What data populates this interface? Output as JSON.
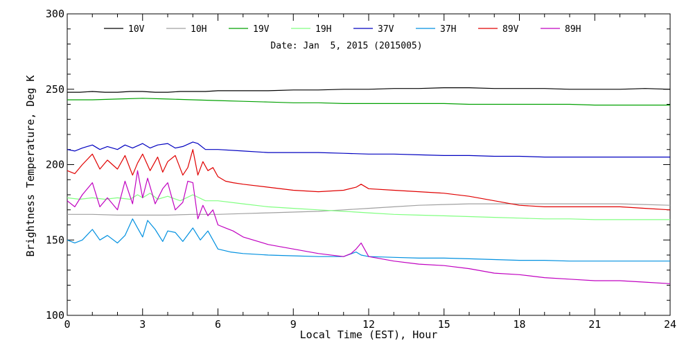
{
  "chart_data": {
    "type": "line",
    "title": "",
    "subtitle": "Date: Jan  5, 2015 (2015005)",
    "xlabel": "Local Time (EST), Hour",
    "ylabel": "Brightness Temperature, Deg K",
    "xlim": [
      0,
      24
    ],
    "ylim": [
      100,
      300
    ],
    "x_ticks": [
      0,
      3,
      6,
      9,
      12,
      15,
      18,
      21,
      24
    ],
    "y_ticks": [
      100,
      150,
      200,
      250,
      300
    ],
    "x_tick_labels": [
      "0",
      "3",
      "6",
      "9",
      "12",
      "15",
      "18",
      "21",
      "24"
    ],
    "y_tick_labels": [
      "100",
      "150",
      "200",
      "250",
      "300"
    ],
    "legend_position": "top",
    "grid": false,
    "series": [
      {
        "name": "10V",
        "color": "#000000",
        "x": [
          0,
          0.5,
          1,
          1.5,
          2,
          2.5,
          3,
          3.5,
          4,
          4.5,
          5,
          5.5,
          6,
          7,
          8,
          9,
          10,
          11,
          12,
          13,
          14,
          15,
          16,
          17,
          18,
          19,
          20,
          21,
          22,
          23,
          24
        ],
        "y": [
          248,
          248,
          248.5,
          248,
          248,
          248.5,
          248.5,
          248,
          248,
          248.5,
          248.5,
          248.5,
          249,
          249,
          249,
          249.5,
          249.5,
          250,
          250,
          250.5,
          250.5,
          251,
          251,
          250.5,
          250.5,
          250.5,
          250,
          250,
          250,
          250.5,
          250
        ]
      },
      {
        "name": "10H",
        "color": "#a0a0a0",
        "x": [
          0,
          1,
          2,
          3,
          4,
          5,
          6,
          7,
          8,
          9,
          10,
          11,
          12,
          13,
          14,
          15,
          16,
          17,
          18,
          19,
          20,
          21,
          22,
          23,
          24
        ],
        "y": [
          167,
          167,
          166.5,
          166.5,
          166.5,
          167,
          167,
          167.5,
          168,
          168.5,
          169,
          170,
          171,
          172,
          173,
          173.5,
          174,
          174,
          174,
          174,
          174,
          174,
          174,
          173.5,
          173
        ]
      },
      {
        "name": "19V",
        "color": "#00a000",
        "x": [
          0,
          1,
          2,
          3,
          4,
          5,
          6,
          7,
          8,
          9,
          10,
          11,
          12,
          13,
          14,
          15,
          16,
          17,
          18,
          19,
          20,
          21,
          22,
          23,
          24
        ],
        "y": [
          243,
          243,
          243.5,
          244,
          243.5,
          243,
          242.5,
          242,
          241.5,
          241,
          241,
          240.5,
          240.5,
          240.5,
          240.5,
          240.5,
          240,
          240,
          240,
          240,
          240,
          239.5,
          239.5,
          239.5,
          239.5
        ]
      },
      {
        "name": "19H",
        "color": "#80ff80",
        "x": [
          0,
          0.5,
          1,
          1.5,
          2,
          2.5,
          2.8,
          3,
          3.3,
          3.6,
          4,
          4.5,
          5,
          5.5,
          6,
          7,
          8,
          9,
          10,
          11,
          12,
          13,
          14,
          15,
          16,
          17,
          18,
          19,
          20,
          21,
          22,
          23,
          24
        ],
        "y": [
          178,
          177,
          178,
          177,
          178,
          177,
          180,
          178,
          181,
          177,
          179,
          176,
          180,
          176,
          176,
          174,
          172,
          171,
          170,
          169,
          168,
          167,
          166.5,
          166,
          165.5,
          165,
          164.5,
          164,
          164,
          163.5,
          163.5,
          163.5,
          163.5
        ]
      },
      {
        "name": "37V",
        "color": "#0000c0",
        "x": [
          0,
          0.3,
          0.6,
          1,
          1.3,
          1.6,
          2,
          2.3,
          2.6,
          3,
          3.3,
          3.6,
          4,
          4.3,
          4.6,
          5,
          5.2,
          5.5,
          6,
          7,
          8,
          9,
          10,
          11,
          12,
          13,
          14,
          15,
          16,
          17,
          18,
          19,
          20,
          21,
          22,
          23,
          24
        ],
        "y": [
          210,
          209,
          211,
          213,
          210,
          212,
          210,
          213,
          211,
          214,
          211,
          213,
          214,
          211,
          212,
          215,
          214,
          210,
          210,
          209,
          208,
          208,
          208,
          207.5,
          207,
          207,
          206.5,
          206,
          206,
          205.5,
          205.5,
          205,
          205,
          205,
          205,
          205,
          205
        ]
      },
      {
        "name": "37H",
        "color": "#0090e0",
        "x": [
          0,
          0.3,
          0.6,
          1,
          1.3,
          1.6,
          2,
          2.3,
          2.6,
          2.8,
          3,
          3.2,
          3.5,
          3.8,
          4,
          4.3,
          4.6,
          5,
          5.3,
          5.6,
          6,
          6.5,
          7,
          8,
          9,
          10,
          11,
          11.5,
          11.7,
          12,
          13,
          14,
          15,
          16,
          17,
          18,
          19,
          20,
          21,
          22,
          23,
          24
        ],
        "y": [
          150,
          148,
          150,
          157,
          150,
          153,
          148,
          153,
          164,
          158,
          152,
          163,
          157,
          149,
          156,
          155,
          149,
          158,
          150,
          156,
          144,
          142,
          141,
          140,
          139.5,
          139,
          139,
          142,
          140,
          139,
          138.5,
          138,
          138,
          137.5,
          137,
          136.5,
          136.5,
          136,
          136,
          136,
          136,
          136
        ]
      },
      {
        "name": "89V",
        "color": "#e00000",
        "x": [
          0,
          0.3,
          0.6,
          1,
          1.3,
          1.6,
          2,
          2.3,
          2.6,
          2.8,
          3,
          3.3,
          3.6,
          3.8,
          4,
          4.3,
          4.6,
          4.8,
          5,
          5.2,
          5.4,
          5.6,
          5.8,
          6,
          6.3,
          6.6,
          7,
          8,
          9,
          10,
          11,
          11.5,
          11.7,
          12,
          13,
          14,
          15,
          16,
          17,
          18,
          19,
          20,
          21,
          22,
          23,
          24
        ],
        "y": [
          196,
          194,
          200,
          207,
          197,
          203,
          197,
          206,
          193,
          201,
          207,
          196,
          205,
          195,
          202,
          206,
          193,
          198,
          210,
          193,
          202,
          196,
          198,
          192,
          189,
          188,
          187,
          185,
          183,
          182,
          183,
          185,
          187,
          184,
          183,
          182,
          181,
          179,
          176,
          173,
          172,
          172,
          172,
          172,
          171,
          170
        ]
      },
      {
        "name": "89H",
        "color": "#c000c0",
        "x": [
          0,
          0.3,
          0.6,
          1,
          1.3,
          1.6,
          2,
          2.3,
          2.6,
          2.8,
          3,
          3.2,
          3.5,
          3.8,
          4,
          4.3,
          4.6,
          4.8,
          5,
          5.2,
          5.4,
          5.6,
          5.8,
          6,
          6.3,
          6.6,
          7,
          8,
          9,
          10,
          11,
          11.3,
          11.5,
          11.7,
          12,
          13,
          14,
          15,
          16,
          17,
          18,
          19,
          20,
          21,
          22,
          23,
          24
        ],
        "y": [
          176,
          172,
          180,
          188,
          172,
          178,
          170,
          189,
          174,
          196,
          178,
          191,
          174,
          184,
          188,
          170,
          175,
          189,
          188,
          164,
          173,
          166,
          170,
          160,
          158,
          156,
          152,
          147,
          144,
          141,
          139,
          141,
          144,
          148,
          139,
          136,
          134,
          133,
          131,
          128,
          127,
          125,
          124,
          123,
          123,
          122,
          121
        ]
      }
    ]
  }
}
